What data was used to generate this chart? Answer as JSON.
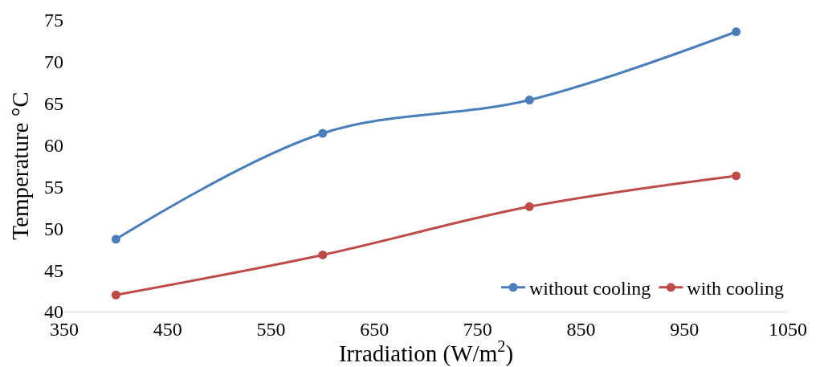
{
  "chart_data": {
    "type": "line",
    "xlabel": "Irradiation (W/m$^{2}$)",
    "ylabel": "Temperature °C",
    "x": [
      400,
      600,
      800,
      1000
    ],
    "series": [
      {
        "name": "without cooling",
        "color": "#4a7ebb",
        "values": [
          48.7,
          61.4,
          65.4,
          73.6
        ]
      },
      {
        "name": "with cooling",
        "color": "#be4b48",
        "values": [
          42.0,
          46.8,
          52.6,
          56.3
        ]
      }
    ],
    "xlim": [
      350,
      1050
    ],
    "xticks": [
      350,
      450,
      550,
      650,
      750,
      850,
      950,
      1050
    ],
    "ylim": [
      40,
      75
    ],
    "yticks": [
      40,
      45,
      50,
      55,
      60,
      65,
      70,
      75
    ],
    "legend": "bottom right",
    "marker": "circle",
    "line_style": "solid"
  }
}
